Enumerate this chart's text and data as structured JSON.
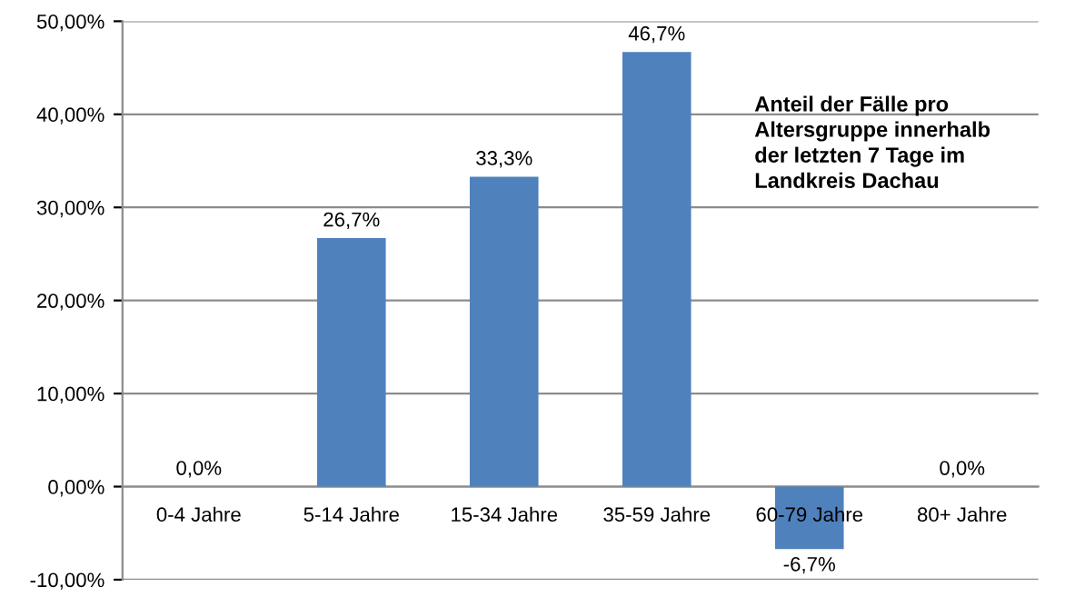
{
  "chart_data": {
    "type": "bar",
    "categories": [
      "0-4 Jahre",
      "5-14 Jahre",
      "15-34 Jahre",
      "35-59 Jahre",
      "60-79 Jahre",
      "80+ Jahre"
    ],
    "values": [
      0.0,
      26.7,
      33.3,
      46.7,
      -6.7,
      0.0
    ],
    "value_labels": [
      "0,0%",
      "26,7%",
      "33,3%",
      "46,7%",
      "-6,7%",
      "0,0%"
    ],
    "color": "#4f81bd",
    "ylim": [
      -10,
      50
    ],
    "yticks": [
      {
        "value": -10,
        "label": "-10,00%"
      },
      {
        "value": 0,
        "label": "0,00%"
      },
      {
        "value": 10,
        "label": "10,00%"
      },
      {
        "value": 20,
        "label": "20,00%"
      },
      {
        "value": 30,
        "label": "30,00%"
      },
      {
        "value": 40,
        "label": "40,00%"
      },
      {
        "value": 50,
        "label": "50,00%"
      }
    ],
    "grid": "y",
    "legend": false,
    "annotations": [
      "Anteil der Fälle pro\nAltersgruppe innerhalb\nder letzten 7 Tage im\nLandkreis Dachau"
    ]
  }
}
